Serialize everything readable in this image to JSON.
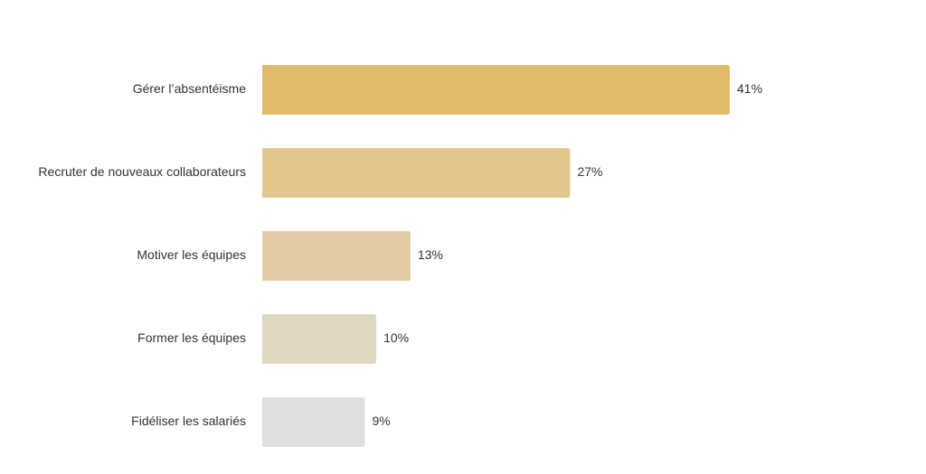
{
  "chart_data": {
    "type": "bar",
    "orientation": "horizontal",
    "categories": [
      "Gérer l’absentéisme",
      "Recruter de nouveaux collaborateurs",
      "Motiver les équipes",
      "Former les équipes",
      "Fidéliser les salariés"
    ],
    "values": [
      41,
      27,
      13,
      10,
      9
    ],
    "value_labels": [
      "41%",
      "27%",
      "13%",
      "10%",
      "9%"
    ],
    "colors": [
      "#E2BA6C",
      "#E3C68C",
      "#E2CCA6",
      "#E1D7C1",
      "#DFDFDF"
    ],
    "xlim": [
      0,
      41
    ],
    "grid": false,
    "legend": "none"
  }
}
